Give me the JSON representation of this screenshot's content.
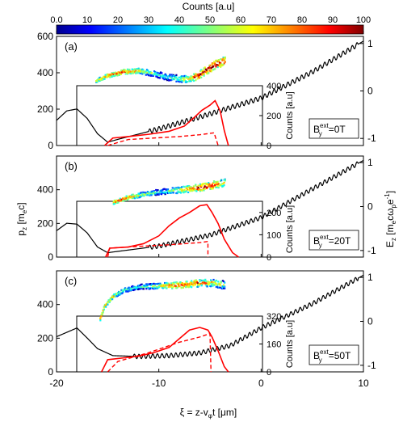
{
  "colorbar": {
    "title": "Counts [a.u]",
    "range": [
      0,
      100
    ],
    "ticks": [
      "0.0",
      "10",
      "20",
      "30",
      "40",
      "50",
      "60",
      "70",
      "80",
      "90",
      "100"
    ]
  },
  "axes": {
    "xlabel": "ξ = z-v",
    "xlabel_sub": "φ",
    "xlabel_tail": "t [μm]",
    "left_label": "p",
    "left_label_sub": "z",
    "left_label_tail": " [m",
    "left_label_sub2": "e",
    "left_label_end": "c]",
    "right_label": "E",
    "right_label_sub": "z",
    "right_label_mid": " [m",
    "right_label_sub2": "e",
    "right_label_mid2": "cω",
    "right_label_sub3": "p",
    "right_label_end": "e",
    "right_label_sup": "-1",
    "right_label_close": "]",
    "inset_ylabel": "Counts [a.u]",
    "x_ticks": [
      "-20",
      "-10",
      "0",
      "10"
    ],
    "left_ticks": [
      "0",
      "200",
      "400",
      "600"
    ],
    "right_ticks": [
      "1",
      "0",
      "-1"
    ]
  },
  "chart_data": [
    {
      "type": "line",
      "panel": "(a)",
      "field_label": "B",
      "field_sup": "ext",
      "field_sub": "y",
      "field_value": "=0T",
      "x_range": [
        -20,
        10
      ],
      "p_range": [
        0,
        600
      ],
      "e_range": [
        -1.15,
        1.15
      ],
      "inset_ticks": [
        "400",
        "200",
        "0"
      ],
      "inset_max": 400,
      "phase_space": [
        {
          "x": -16.2,
          "p": 360
        },
        {
          "x": -15.0,
          "p": 390
        },
        {
          "x": -13.5,
          "p": 410
        },
        {
          "x": -12.0,
          "p": 415
        },
        {
          "x": -10.5,
          "p": 400
        },
        {
          "x": -9.0,
          "p": 378
        },
        {
          "x": -7.5,
          "p": 368
        },
        {
          "x": -6.5,
          "p": 380
        },
        {
          "x": -5.5,
          "p": 415
        },
        {
          "x": -4.5,
          "p": 450
        },
        {
          "x": -3.6,
          "p": 470
        }
      ],
      "ez_field": [
        {
          "x": -20.0,
          "e": -0.62
        },
        {
          "x": -19.0,
          "e": -0.42
        },
        {
          "x": -18.0,
          "e": -0.38
        },
        {
          "x": -17.0,
          "e": -0.58
        },
        {
          "x": -16.0,
          "e": -0.9
        },
        {
          "x": -15.0,
          "e": -1.08
        },
        {
          "x": -14.0,
          "e": -1.02
        },
        {
          "x": -10.0,
          "e": -0.8
        },
        {
          "x": -6.0,
          "e": -0.55
        },
        {
          "x": 0.0,
          "e": -0.15
        },
        {
          "x": 5.0,
          "e": 0.4
        },
        {
          "x": 10.0,
          "e": 1.05
        }
      ],
      "ez_wiggle": {
        "from": -11.0,
        "to": 9.5,
        "amplitude": 0.05,
        "period": 0.45
      },
      "spectrum_total": [
        {
          "x": -15.3,
          "c": 0
        },
        {
          "x": -14.5,
          "c": 50
        },
        {
          "x": -13.0,
          "c": 60
        },
        {
          "x": -11.0,
          "c": 75
        },
        {
          "x": -9.0,
          "c": 95
        },
        {
          "x": -7.5,
          "c": 130
        },
        {
          "x": -6.5,
          "c": 190
        },
        {
          "x": -5.8,
          "c": 235
        },
        {
          "x": -5.0,
          "c": 270
        },
        {
          "x": -4.5,
          "c": 300
        },
        {
          "x": -4.0,
          "c": 230
        },
        {
          "x": -3.6,
          "c": 100
        },
        {
          "x": -3.2,
          "c": 0
        }
      ],
      "spectrum_dashed": [
        {
          "x": -15.0,
          "c": 0
        },
        {
          "x": -13.0,
          "c": 40
        },
        {
          "x": -10.0,
          "c": 52
        },
        {
          "x": -8.0,
          "c": 60
        },
        {
          "x": -6.0,
          "c": 72
        },
        {
          "x": -4.6,
          "c": 85
        },
        {
          "x": -4.2,
          "c": 0
        }
      ]
    },
    {
      "type": "line",
      "panel": "(b)",
      "field_label": "B",
      "field_sup": "ext",
      "field_sub": "y",
      "field_value": "=20T",
      "x_range": [
        -20,
        10
      ],
      "p_range": [
        0,
        600
      ],
      "e_range": [
        -1.15,
        1.15
      ],
      "inset_ticks": [
        "200",
        "100",
        "0"
      ],
      "inset_max": 250,
      "phase_space": [
        {
          "x": -14.5,
          "p": 330
        },
        {
          "x": -13.0,
          "p": 360
        },
        {
          "x": -11.5,
          "p": 378
        },
        {
          "x": -10.0,
          "p": 392
        },
        {
          "x": -8.5,
          "p": 400
        },
        {
          "x": -7.0,
          "p": 410
        },
        {
          "x": -5.5,
          "p": 422
        },
        {
          "x": -4.5,
          "p": 436
        },
        {
          "x": -3.6,
          "p": 448
        }
      ],
      "ez_field": [
        {
          "x": -20.0,
          "e": -0.55
        },
        {
          "x": -19.0,
          "e": -0.38
        },
        {
          "x": -18.0,
          "e": -0.4
        },
        {
          "x": -17.0,
          "e": -0.6
        },
        {
          "x": -16.0,
          "e": -0.92
        },
        {
          "x": -15.0,
          "e": -1.05
        },
        {
          "x": -10.0,
          "e": -0.9
        },
        {
          "x": -5.0,
          "e": -0.65
        },
        {
          "x": 0.0,
          "e": -0.25
        },
        {
          "x": 5.0,
          "e": 0.4
        },
        {
          "x": 10.0,
          "e": 1.05
        }
      ],
      "ez_wiggle": {
        "from": -11.0,
        "to": 9.5,
        "amplitude": 0.05,
        "period": 0.45
      },
      "spectrum_total": [
        {
          "x": -15.2,
          "c": 0
        },
        {
          "x": -14.8,
          "c": 40
        },
        {
          "x": -13.0,
          "c": 45
        },
        {
          "x": -11.5,
          "c": 60
        },
        {
          "x": -10.0,
          "c": 95
        },
        {
          "x": -9.0,
          "c": 140
        },
        {
          "x": -8.0,
          "c": 175
        },
        {
          "x": -7.0,
          "c": 200
        },
        {
          "x": -6.0,
          "c": 230
        },
        {
          "x": -5.3,
          "c": 235
        },
        {
          "x": -4.8,
          "c": 200
        },
        {
          "x": -4.2,
          "c": 150
        },
        {
          "x": -3.6,
          "c": 80
        },
        {
          "x": -2.8,
          "c": 20
        },
        {
          "x": -2.2,
          "c": 0
        }
      ],
      "spectrum_dashed": [
        {
          "x": -15.0,
          "c": 0
        },
        {
          "x": -14.8,
          "c": 40
        },
        {
          "x": -12.0,
          "c": 48
        },
        {
          "x": -9.0,
          "c": 55
        },
        {
          "x": -6.0,
          "c": 65
        },
        {
          "x": -5.2,
          "c": 70
        },
        {
          "x": -5.2,
          "c": 0
        }
      ]
    },
    {
      "type": "line",
      "panel": "(c)",
      "field_label": "B",
      "field_sup": "ext",
      "field_sub": "y",
      "field_value": "=50T",
      "x_range": [
        -20,
        10
      ],
      "p_range": [
        0,
        600
      ],
      "e_range": [
        -1.15,
        1.15
      ],
      "inset_ticks": [
        "320",
        "160",
        "0"
      ],
      "inset_max": 320,
      "phase_space": [
        {
          "x": -15.8,
          "p": 320
        },
        {
          "x": -15.4,
          "p": 390
        },
        {
          "x": -14.6,
          "p": 450
        },
        {
          "x": -13.5,
          "p": 490
        },
        {
          "x": -12.0,
          "p": 510
        },
        {
          "x": -10.0,
          "p": 515
        },
        {
          "x": -8.0,
          "p": 520
        },
        {
          "x": -6.5,
          "p": 530
        },
        {
          "x": -5.0,
          "p": 535
        },
        {
          "x": -3.6,
          "p": 520
        }
      ],
      "ez_field": [
        {
          "x": -20.0,
          "e": -0.35
        },
        {
          "x": -19.0,
          "e": -0.25
        },
        {
          "x": -18.0,
          "e": -0.15
        },
        {
          "x": -17.0,
          "e": -0.38
        },
        {
          "x": -16.0,
          "e": -0.62
        },
        {
          "x": -14.5,
          "e": -0.78
        },
        {
          "x": -12.0,
          "e": -0.8
        },
        {
          "x": -9.0,
          "e": -0.78
        },
        {
          "x": -6.0,
          "e": -0.72
        },
        {
          "x": -3.0,
          "e": -0.55
        },
        {
          "x": 0.0,
          "e": -0.15
        },
        {
          "x": 5.0,
          "e": 0.4
        },
        {
          "x": 10.0,
          "e": 1.05
        }
      ],
      "ez_wiggle": {
        "from": -12.5,
        "to": 9.5,
        "amplitude": 0.05,
        "period": 0.45
      },
      "spectrum_total": [
        {
          "x": -15.6,
          "c": 0
        },
        {
          "x": -15.0,
          "c": 70
        },
        {
          "x": -13.5,
          "c": 80
        },
        {
          "x": -12.0,
          "c": 90
        },
        {
          "x": -10.5,
          "c": 110
        },
        {
          "x": -9.0,
          "c": 140
        },
        {
          "x": -8.0,
          "c": 190
        },
        {
          "x": -7.0,
          "c": 240
        },
        {
          "x": -6.0,
          "c": 255
        },
        {
          "x": -5.2,
          "c": 240
        },
        {
          "x": -4.8,
          "c": 200
        },
        {
          "x": -4.2,
          "c": 120
        },
        {
          "x": -3.6,
          "c": 30
        },
        {
          "x": -3.2,
          "c": 0
        }
      ],
      "spectrum_dashed": [
        {
          "x": -15.0,
          "c": 0
        },
        {
          "x": -14.0,
          "c": 60
        },
        {
          "x": -11.0,
          "c": 110
        },
        {
          "x": -8.0,
          "c": 170
        },
        {
          "x": -6.0,
          "c": 200
        },
        {
          "x": -5.0,
          "c": 220
        },
        {
          "x": -4.9,
          "c": 0
        }
      ]
    }
  ]
}
